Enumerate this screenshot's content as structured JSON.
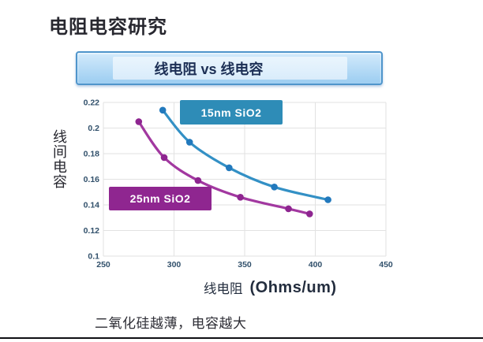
{
  "slide": {
    "title": "电阻电容研究",
    "banner_title": "线电阻 vs 线电容",
    "note": "二氧化硅越薄，电容越大"
  },
  "chart_data": {
    "type": "scatter",
    "title": "线电阻 vs 线电容",
    "xlabel": "线电阻",
    "xlabel_unit": "(Ohms/um)",
    "ylabel": "线间电容",
    "xlim": [
      250,
      450
    ],
    "ylim": [
      0.1,
      0.22
    ],
    "xticks": [
      250,
      300,
      350,
      400,
      450
    ],
    "yticks": [
      0.1,
      0.12,
      0.14,
      0.16,
      0.18,
      0.2,
      0.22
    ],
    "grid": true,
    "grid_color": "#e2e2e2",
    "tick_color": "#31506b",
    "legend_position": "inside-plot",
    "series": [
      {
        "name": "15nm SiO2",
        "color": "#3390c5",
        "point_color": "#2279bd",
        "label_bg": "#2e8cb7",
        "points": [
          [
            292,
            0.214
          ],
          [
            311,
            0.189
          ],
          [
            339,
            0.169
          ],
          [
            371,
            0.154
          ],
          [
            409,
            0.144
          ]
        ]
      },
      {
        "name": "25nm SiO2",
        "color": "#a238a0",
        "point_color": "#8e2590",
        "label_bg": "#8f2690",
        "points": [
          [
            275,
            0.205
          ],
          [
            293,
            0.177
          ],
          [
            317,
            0.159
          ],
          [
            347,
            0.146
          ],
          [
            381,
            0.137
          ],
          [
            396,
            0.133
          ]
        ]
      }
    ]
  }
}
